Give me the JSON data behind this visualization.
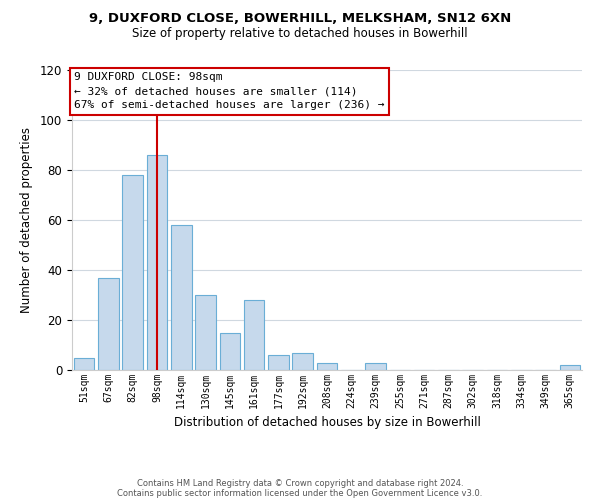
{
  "title_line1": "9, DUXFORD CLOSE, BOWERHILL, MELKSHAM, SN12 6XN",
  "title_line2": "Size of property relative to detached houses in Bowerhill",
  "xlabel": "Distribution of detached houses by size in Bowerhill",
  "ylabel": "Number of detached properties",
  "bar_labels": [
    "51sqm",
    "67sqm",
    "82sqm",
    "98sqm",
    "114sqm",
    "130sqm",
    "145sqm",
    "161sqm",
    "177sqm",
    "192sqm",
    "208sqm",
    "224sqm",
    "239sqm",
    "255sqm",
    "271sqm",
    "287sqm",
    "302sqm",
    "318sqm",
    "334sqm",
    "349sqm",
    "365sqm"
  ],
  "bar_values": [
    5,
    37,
    78,
    86,
    58,
    30,
    15,
    28,
    6,
    7,
    3,
    0,
    3,
    0,
    0,
    0,
    0,
    0,
    0,
    0,
    2
  ],
  "bar_color": "#c6d9ec",
  "bar_edge_color": "#6aaed6",
  "vline_x": 3,
  "vline_color": "#cc0000",
  "ylim": [
    0,
    120
  ],
  "yticks": [
    0,
    20,
    40,
    60,
    80,
    100,
    120
  ],
  "annotation_title": "9 DUXFORD CLOSE: 98sqm",
  "annotation_line1": "← 32% of detached houses are smaller (114)",
  "annotation_line2": "67% of semi-detached houses are larger (236) →",
  "annotation_box_edge": "#cc0000",
  "footnote1": "Contains HM Land Registry data © Crown copyright and database right 2024.",
  "footnote2": "Contains public sector information licensed under the Open Government Licence v3.0.",
  "bg_color": "#ffffff",
  "grid_color": "#d0d8e0"
}
